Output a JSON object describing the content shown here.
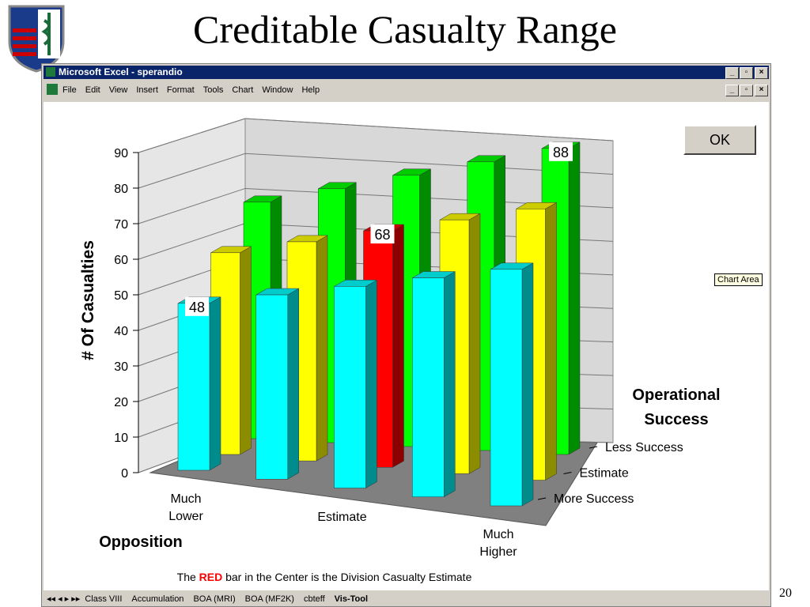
{
  "slide": {
    "title": "Creditable Casualty Range",
    "page_number": "20"
  },
  "window": {
    "title": "Microsoft Excel - sperandio",
    "menu": [
      "File",
      "Edit",
      "View",
      "Insert",
      "Format",
      "Tools",
      "Chart",
      "Window",
      "Help"
    ],
    "sheet_tabs": [
      "Class VIII",
      "Accumulation",
      "BOA (MRI)",
      "BOA (MF2K)",
      "cbteff",
      "Vis-Tool"
    ],
    "active_tab": 5,
    "button": "OK",
    "tooltip": "Chart Area",
    "note": [
      "The",
      "RED",
      "bar in the Center is the Division Casualty Estimate"
    ]
  },
  "chart_data": {
    "type": "bar3d",
    "ylabel": "# Of Casualties",
    "xlabel": "Opposition",
    "zlabel": "Operational Success",
    "categories": [
      "Much Lower",
      null,
      "Estimate",
      null,
      "Much Higher"
    ],
    "series": [
      {
        "name": "More Success",
        "color": "#00ffff",
        "values": [
          48,
          53,
          58,
          63,
          68
        ],
        "show_labels": [
          true,
          false,
          false,
          false,
          false
        ]
      },
      {
        "name": "Estimate",
        "color": "#ffff00",
        "colors": [
          "#ffff00",
          "#ffff00",
          "#ff0000",
          "#ffff00",
          "#ffff00"
        ],
        "values": [
          58,
          63,
          68,
          73,
          78
        ],
        "show_labels": [
          false,
          false,
          true,
          false,
          false
        ]
      },
      {
        "name": "Less Success",
        "color": "#00ff00",
        "values": [
          68,
          73,
          78,
          83,
          88
        ],
        "show_labels": [
          false,
          false,
          false,
          false,
          true
        ]
      }
    ],
    "ylim": [
      0,
      90
    ],
    "yticks": [
      0,
      10,
      20,
      30,
      40,
      50,
      60,
      70,
      80,
      90
    ],
    "grid": true
  }
}
